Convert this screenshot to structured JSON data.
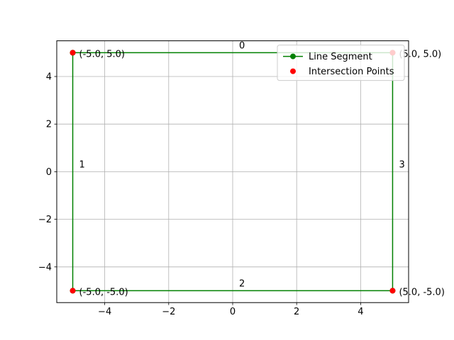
{
  "chart_data": {
    "type": "line",
    "title": "",
    "xlabel": "",
    "ylabel": "",
    "xlim": [
      -5.5,
      5.5
    ],
    "ylim": [
      -5.5,
      5.5
    ],
    "grid": true,
    "legend_placement": "top-right",
    "xticks": [
      -4,
      -2,
      0,
      2,
      4
    ],
    "yticks": [
      -4,
      -2,
      0,
      2,
      4
    ],
    "xtick_labels": [
      "−4",
      "−2",
      "0",
      "2",
      "4"
    ],
    "ytick_labels": [
      "−4",
      "−2",
      "0",
      "2",
      "4"
    ],
    "series": [
      {
        "name": "Line Segment",
        "color": "#008000",
        "x": [
          -5,
          5,
          5,
          -5,
          -5
        ],
        "y": [
          5,
          5,
          -5,
          -5,
          5
        ]
      },
      {
        "name": "Intersection Points",
        "color": "#ff0000",
        "x": [
          -5,
          5,
          5,
          -5
        ],
        "y": [
          5,
          5,
          -5,
          -5
        ]
      }
    ],
    "point_labels": [
      {
        "text": "(-5.0, 5.0)",
        "x": -5,
        "y": 5
      },
      {
        "text": "(5.0, 5.0)",
        "x": 5,
        "y": 5
      },
      {
        "text": "(5.0, -5.0)",
        "x": 5,
        "y": -5
      },
      {
        "text": "(-5.0, -5.0)",
        "x": -5,
        "y": -5
      }
    ],
    "segment_labels": [
      {
        "text": "0",
        "x": 0,
        "y": 5
      },
      {
        "text": "1",
        "x": -5,
        "y": 0
      },
      {
        "text": "2",
        "x": 0,
        "y": -5
      },
      {
        "text": "3",
        "x": 5,
        "y": 0
      }
    ]
  }
}
